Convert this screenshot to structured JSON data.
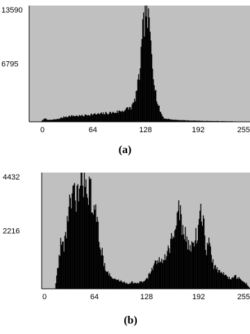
{
  "chart_data": [
    {
      "type": "histogram",
      "panel": "(a)",
      "title": "",
      "xlabel": "",
      "ylabel": "",
      "xlim": [
        0,
        255
      ],
      "ylim": [
        0,
        13590
      ],
      "x_ticks": [
        "0",
        "64",
        "128",
        "192",
        "255"
      ],
      "y_ticks": [
        "13590",
        "6795"
      ],
      "grid": false,
      "legend": "none",
      "background": "#c0c0c0",
      "bar_color": "#000000",
      "x": [
        0,
        5,
        10,
        20,
        30,
        40,
        50,
        60,
        70,
        80,
        90,
        100,
        105,
        110,
        112,
        114,
        116,
        118,
        120,
        121,
        122,
        123,
        124,
        125,
        126,
        127,
        128,
        129,
        130,
        131,
        132,
        133,
        134,
        135,
        136,
        137,
        138,
        139,
        140,
        142,
        144,
        146,
        148,
        150,
        160,
        180,
        200,
        230,
        255
      ],
      "values": [
        0,
        400,
        200,
        300,
        600,
        700,
        700,
        850,
        900,
        1000,
        1100,
        1300,
        1500,
        1700,
        2000,
        2400,
        3300,
        4200,
        5500,
        6800,
        7800,
        8700,
        10200,
        11000,
        12000,
        12800,
        13590,
        13300,
        12100,
        11500,
        10900,
        10000,
        9300,
        8300,
        7000,
        6000,
        5200,
        4200,
        3400,
        2200,
        1600,
        1100,
        700,
        400,
        250,
        150,
        100,
        60,
        0
      ]
    },
    {
      "type": "histogram",
      "panel": "(b)",
      "title": "",
      "xlabel": "",
      "ylabel": "",
      "xlim": [
        0,
        255
      ],
      "ylim": [
        0,
        4432
      ],
      "x_ticks": [
        "0",
        "64",
        "128",
        "192",
        "255"
      ],
      "y_ticks": [
        "4432",
        "2216"
      ],
      "grid": false,
      "legend": "none",
      "background": "#c0c0c0",
      "bar_color": "#000000",
      "x": [
        0,
        15,
        18,
        20,
        22,
        24,
        26,
        28,
        30,
        32,
        34,
        36,
        38,
        40,
        42,
        44,
        46,
        48,
        50,
        52,
        54,
        56,
        58,
        60,
        62,
        64,
        66,
        68,
        70,
        72,
        74,
        76,
        80,
        85,
        90,
        95,
        100,
        105,
        110,
        115,
        120,
        125,
        130,
        135,
        140,
        145,
        150,
        155,
        158,
        162,
        165,
        168,
        170,
        173,
        176,
        180,
        183,
        186,
        189,
        192,
        195,
        198,
        201,
        204,
        207,
        210,
        215,
        220,
        225,
        230,
        235,
        240,
        245,
        250,
        255
      ],
      "values": [
        0,
        0,
        700,
        1200,
        1800,
        1600,
        1700,
        2000,
        2600,
        3100,
        3200,
        3300,
        3500,
        3400,
        3600,
        3700,
        3700,
        4000,
        4100,
        4432,
        4200,
        3800,
        3700,
        3500,
        3200,
        2900,
        2600,
        2300,
        1800,
        1500,
        1200,
        900,
        600,
        400,
        350,
        300,
        250,
        200,
        250,
        200,
        250,
        300,
        500,
        800,
        1000,
        1100,
        1300,
        1500,
        1900,
        2100,
        2800,
        2900,
        2600,
        2200,
        1900,
        1500,
        1800,
        1900,
        2000,
        2700,
        2800,
        2300,
        1500,
        1800,
        1200,
        900,
        700,
        600,
        500,
        400,
        500,
        400,
        300,
        200,
        0
      ]
    }
  ]
}
